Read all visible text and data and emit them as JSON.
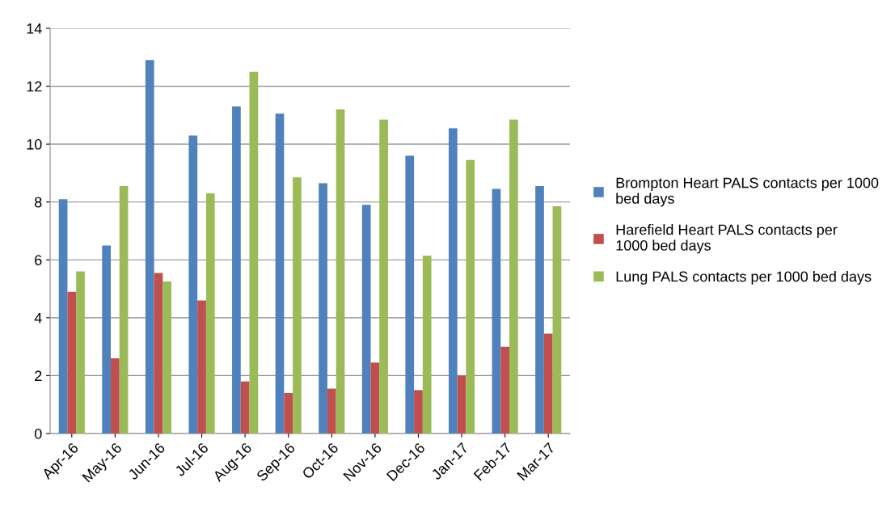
{
  "chart_data": {
    "type": "bar",
    "categories": [
      "Apr-16",
      "May-16",
      "Jun-16",
      "Jul-16",
      "Aug-16",
      "Sep-16",
      "Oct-16",
      "Nov-16",
      "Dec-16",
      "Jan-17",
      "Feb-17",
      "Mar-17"
    ],
    "series": [
      {
        "name": "Brompton Heart PALS contacts per 1000 bed days",
        "color": "#4f81bd",
        "values": [
          8.1,
          6.5,
          12.9,
          10.3,
          11.3,
          11.05,
          8.65,
          7.9,
          9.6,
          10.55,
          8.45,
          8.55
        ]
      },
      {
        "name": "Harefield Heart PALS contacts per 1000 bed days",
        "color": "#c0504d",
        "values": [
          4.9,
          2.6,
          5.55,
          4.6,
          1.8,
          1.4,
          1.55,
          2.45,
          1.5,
          2.0,
          3.0,
          3.45
        ]
      },
      {
        "name": "Lung PALS contacts per 1000 bed days",
        "color": "#9bbb59",
        "values": [
          5.6,
          8.55,
          5.25,
          8.3,
          12.5,
          8.85,
          11.2,
          10.85,
          6.15,
          9.45,
          10.85,
          7.85
        ]
      }
    ],
    "ylim": [
      0,
      14
    ],
    "yticks": [
      0,
      2,
      4,
      6,
      8,
      10,
      12,
      14
    ],
    "grid": "y",
    "legend": "right"
  }
}
